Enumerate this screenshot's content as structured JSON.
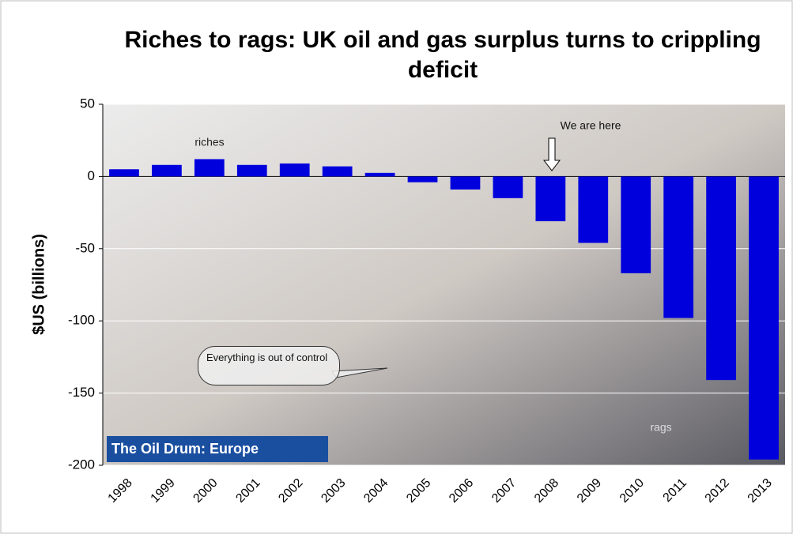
{
  "chart_data": {
    "type": "bar",
    "title": "Riches to rags: UK oil and gas surplus turns to crippling deficit",
    "y_label": "$US (billions)",
    "categories": [
      "1998",
      "1999",
      "2000",
      "2001",
      "2002",
      "2003",
      "2004",
      "2005",
      "2006",
      "2007",
      "2008",
      "2009",
      "2010",
      "2011",
      "2012",
      "2013"
    ],
    "values": [
      5,
      8,
      12,
      8,
      9,
      7,
      2.5,
      -4,
      -9,
      -15,
      -31,
      -46,
      -67,
      -98,
      -141,
      -196
    ],
    "color": "#0000dd",
    "ylim": [
      -200,
      50
    ],
    "yticks": [
      50,
      0,
      -50,
      -100,
      -150,
      -200
    ],
    "grid": true,
    "annotations": {
      "riches": "riches",
      "here": "We are here",
      "callout": "Everything is out of control",
      "rags": "rags",
      "logo": "The Oil Drum: Europe"
    }
  }
}
